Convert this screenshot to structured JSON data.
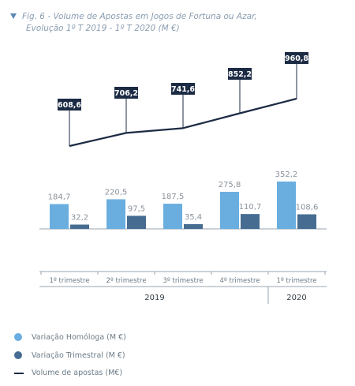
{
  "figure": {
    "title": "Fig. 6 - Volume de Apostas em Jogos de Fortuna ou Azar,",
    "subtitle": "Evolução 1º T 2019 - 1º T 2020 (M €)"
  },
  "colors": {
    "homologa": "#6aaee0",
    "trimestral": "#466c92",
    "volume": "#1c2b44",
    "label_bg": "#1c2b44",
    "axis": "#9aa6b0",
    "tick_text": "#6d7b86",
    "bar_label": "#8a929a"
  },
  "chart_data": {
    "type": "bar",
    "categories": [
      "1º trimestre",
      "2º trimestre",
      "3º trimestre",
      "4º trimestre",
      "1º trimestre"
    ],
    "groups": [
      {
        "label": "2019",
        "from": 0,
        "to": 3
      },
      {
        "label": "2020",
        "from": 4,
        "to": 4
      }
    ],
    "series": [
      {
        "name": "Variação Homóloga (M €)",
        "kind": "bar",
        "values": [
          184.7,
          220.5,
          187.5,
          275.8,
          352.2
        ],
        "labels": [
          "184,7",
          "220,5",
          "187,5",
          "275,8",
          "352,2"
        ]
      },
      {
        "name": "Variação Trimestral (M €)",
        "kind": "bar",
        "values": [
          32.2,
          97.5,
          35.4,
          110.7,
          108.6
        ],
        "labels": [
          "32,2",
          "97,5",
          "35,4",
          "110,7",
          "108,6"
        ]
      },
      {
        "name": "Volume de apostas (M€)",
        "kind": "line",
        "values": [
          608.6,
          706.2,
          741.6,
          852.2,
          960.8
        ],
        "labels": [
          "608,6",
          "706,2",
          "741,6",
          "852,2",
          "960,8"
        ]
      }
    ],
    "legend_position": "bottom-left",
    "grid": false
  }
}
